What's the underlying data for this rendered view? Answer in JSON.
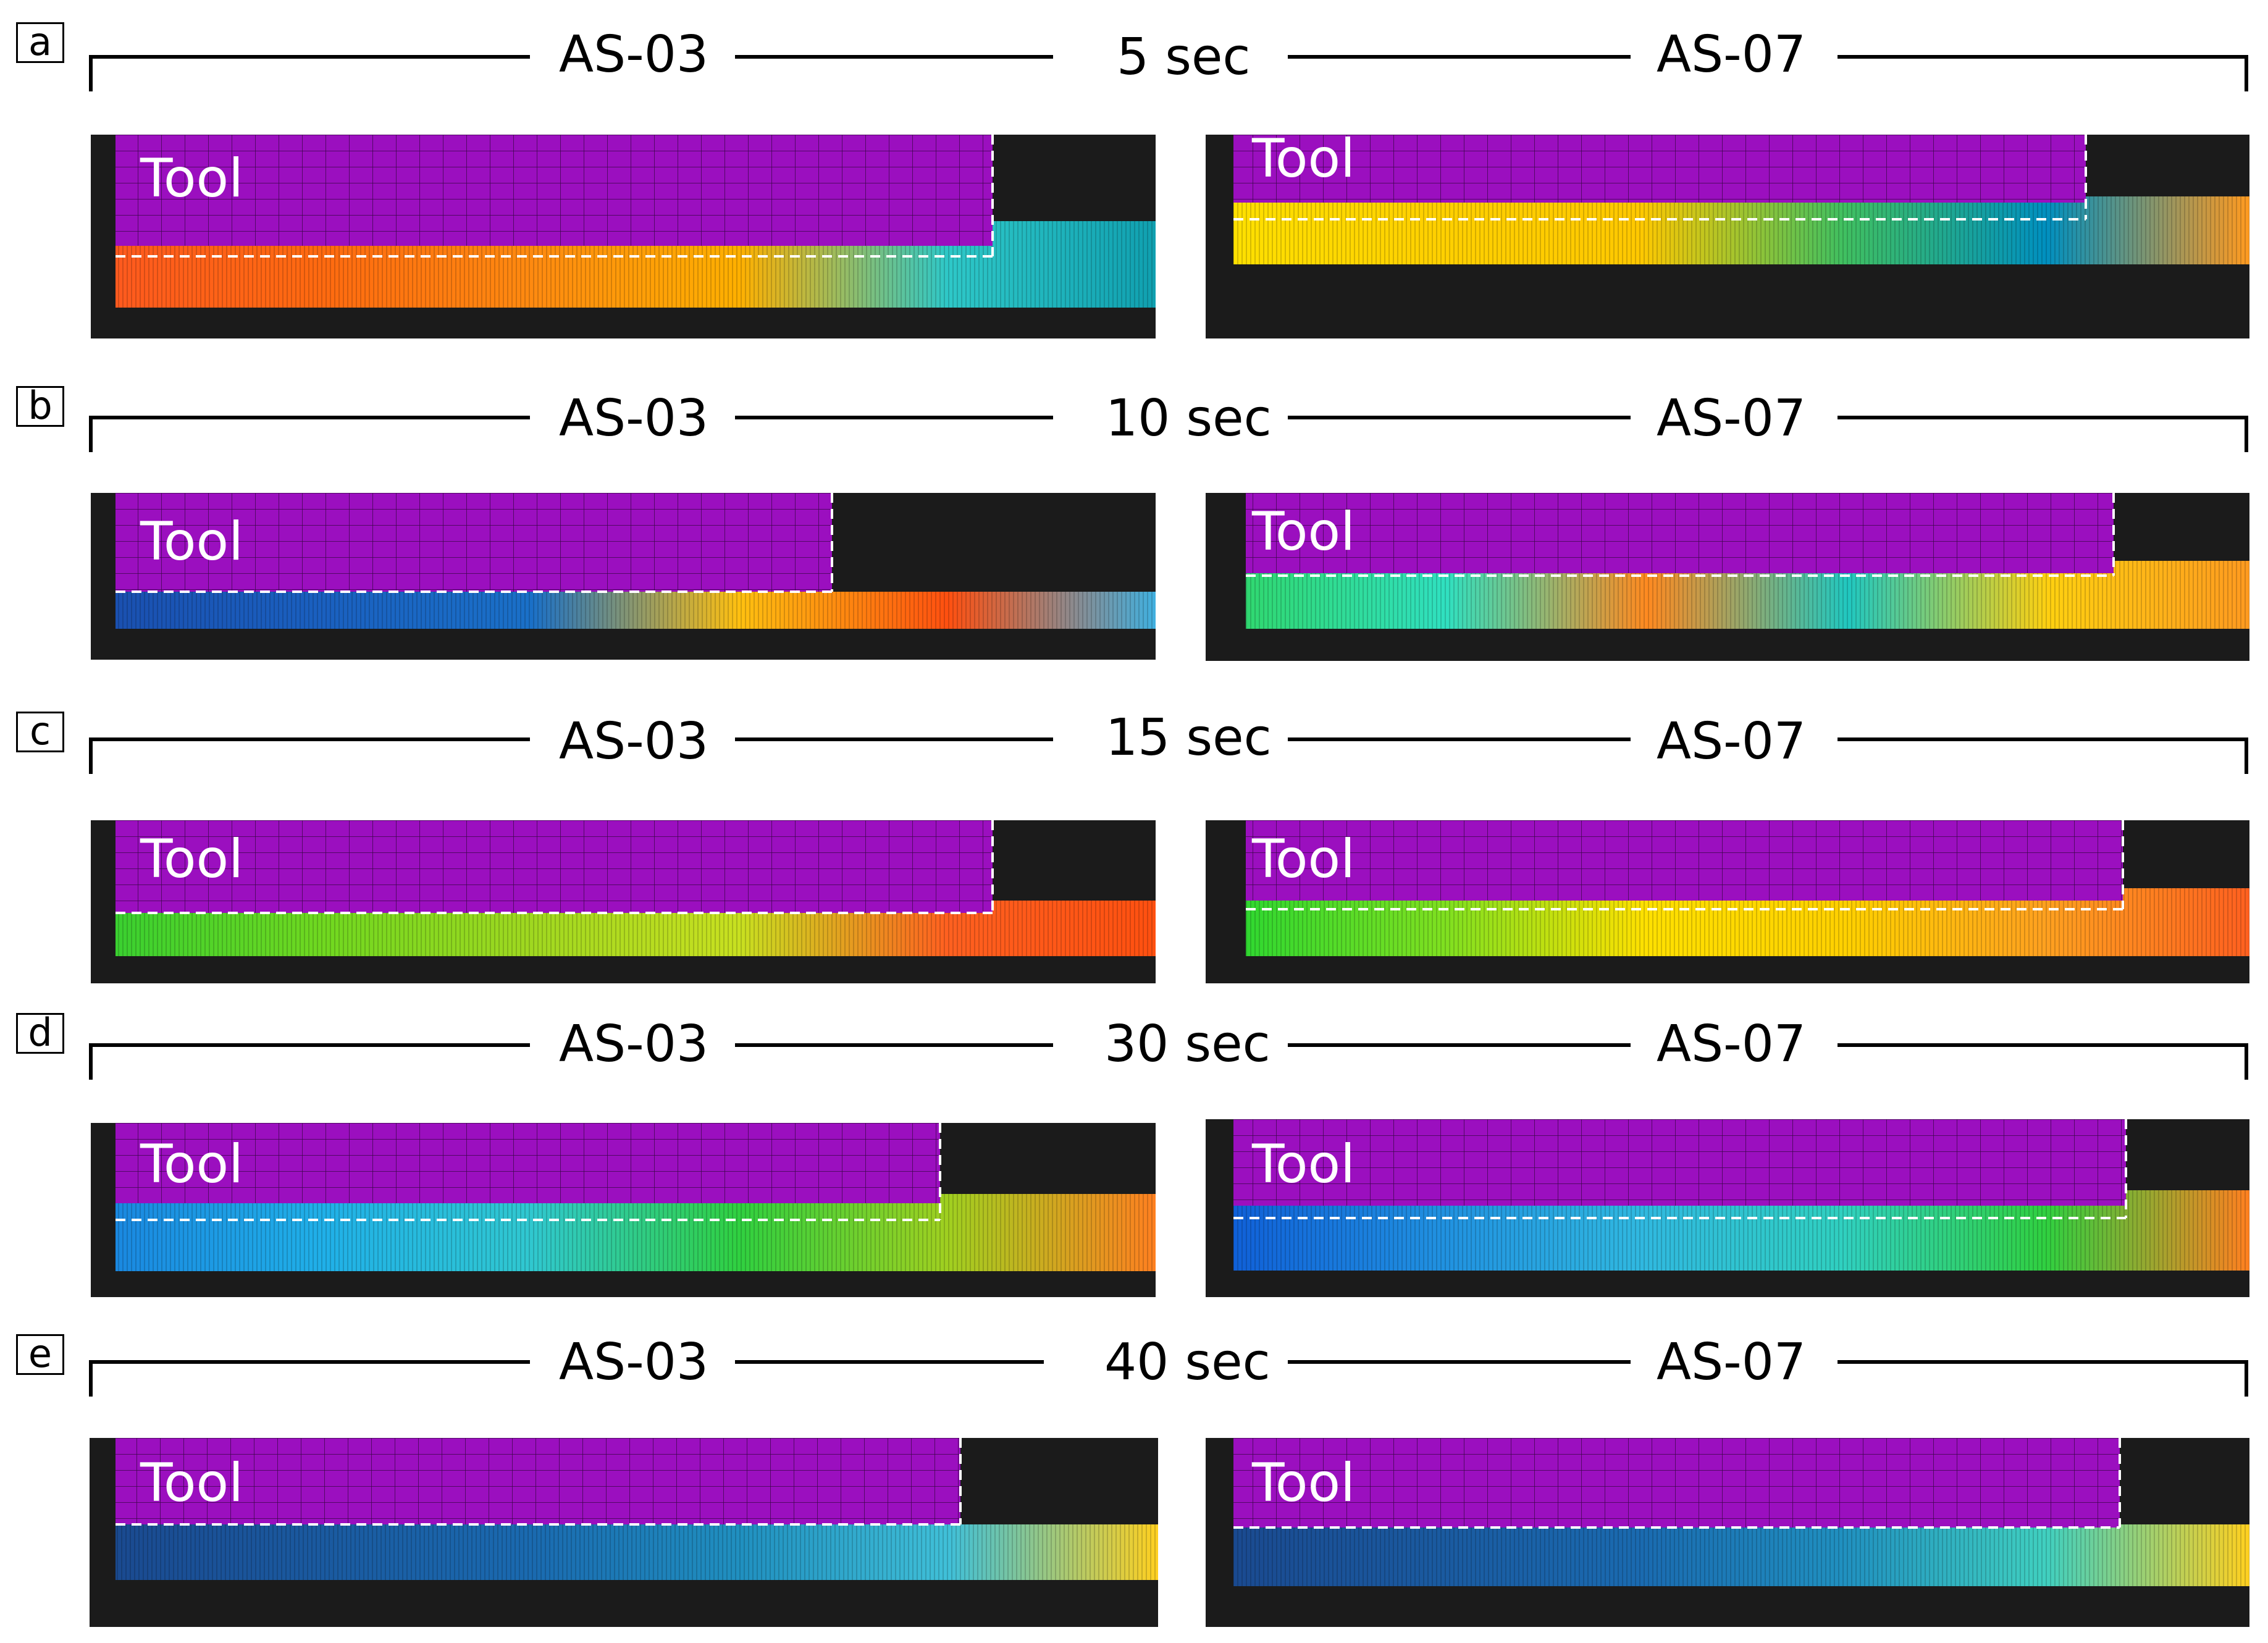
{
  "left_label": "AS-03",
  "right_label": "AS-07",
  "tool_text": "Tool",
  "rows": [
    {
      "letter": "a",
      "time": "5 sec"
    },
    {
      "letter": "b",
      "time": "10 sec"
    },
    {
      "letter": "c",
      "time": "15 sec"
    },
    {
      "letter": "d",
      "time": "30 sec"
    },
    {
      "letter": "e",
      "time": "40 sec"
    }
  ],
  "colors": {
    "tool": "#9b0fbf",
    "background": "#1b1b1b",
    "dashed_line": "#ffffff"
  }
}
